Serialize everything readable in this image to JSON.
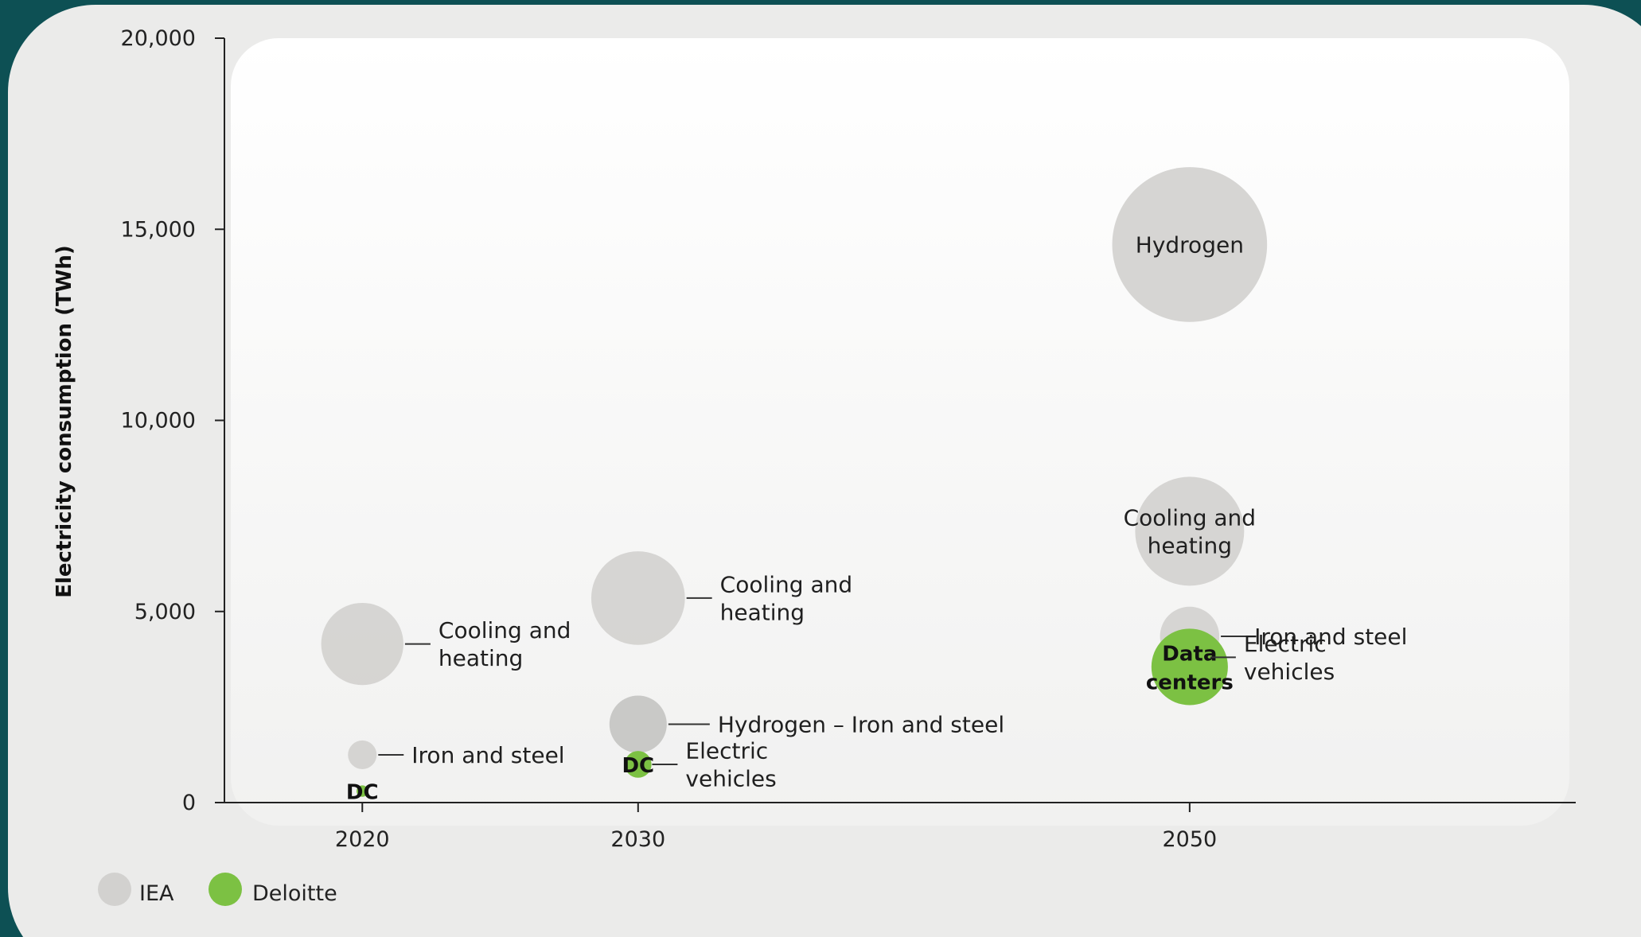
{
  "colors": {
    "page_bg": "#0d5054",
    "card_bg": "#ebebea",
    "iea": "#d2d1cf",
    "iea_dark": "#c6c5c3",
    "deloitte": "#7cc143",
    "axis": "#222222"
  },
  "chart_data": {
    "type": "bubble",
    "title": "",
    "xlabel": "",
    "ylabel": "Electricity consumption (TWh)",
    "ylim": [
      0,
      20000
    ],
    "y_ticks": [
      0,
      5000,
      10000,
      15000,
      20000
    ],
    "y_tick_labels": [
      "0",
      "5,000",
      "10,000",
      "15,000",
      "20,000"
    ],
    "x_ticks": [
      2020,
      2030,
      2050
    ],
    "x_tick_labels": [
      "2020",
      "2030",
      "2050"
    ],
    "xlim": [
      2015,
      2064
    ],
    "legend": {
      "position": "bottom-left",
      "entries": [
        {
          "name": "IEA",
          "color": "#d2d1cf"
        },
        {
          "name": "Deloitte",
          "color": "#7cc143"
        }
      ]
    },
    "series": [
      {
        "name": "IEA",
        "points": [
          {
            "x": 2020,
            "y": 4150,
            "size": 2150,
            "label": "Cooling and heating",
            "label_mode": "outside"
          },
          {
            "x": 2020,
            "y": 1250,
            "size": 750,
            "label": "Iron and steel",
            "label_mode": "outside"
          },
          {
            "x": 2030,
            "y": 5350,
            "size": 2450,
            "label": "Cooling and heating",
            "label_mode": "outside"
          },
          {
            "x": 2030,
            "y": 2050,
            "size": 1500,
            "label": "Hydrogen – Iron and steel",
            "label_mode": "outside"
          },
          {
            "x": 2050,
            "y": 14600,
            "size": 4050,
            "label": "Hydrogen",
            "label_mode": "inside"
          },
          {
            "x": 2050,
            "y": 7100,
            "size": 2850,
            "label": "Cooling and heating",
            "label_mode": "inside"
          },
          {
            "x": 2050,
            "y": 4350,
            "size": 1550,
            "label": "Iron and steel",
            "label_mode": "outside"
          }
        ]
      },
      {
        "name": "Deloitte",
        "points": [
          {
            "x": 2020,
            "y": 300,
            "size": 300,
            "label": "DC",
            "label_mode": "inside"
          },
          {
            "x": 2030,
            "y": 1000,
            "size": 700,
            "label": "DC",
            "label_mode": "inside"
          },
          {
            "x": 2030,
            "y": 1000,
            "size": 650,
            "label": "Electric vehicles",
            "label_mode": "outside"
          },
          {
            "x": 2050,
            "y": 3550,
            "size": 2000,
            "label": "Data centers",
            "label_mode": "inside"
          },
          {
            "x": 2050,
            "y": 3800,
            "size": 1000,
            "label": "Electric vehicles",
            "label_mode": "outside"
          }
        ]
      }
    ]
  }
}
